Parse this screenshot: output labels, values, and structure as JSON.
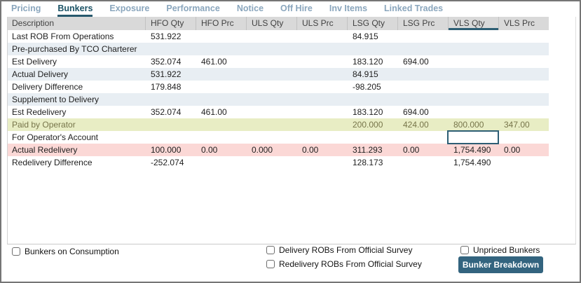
{
  "tabs": {
    "items": [
      {
        "label": "Pricing",
        "active": false
      },
      {
        "label": "Bunkers",
        "active": true
      },
      {
        "label": "Exposure",
        "active": false
      },
      {
        "label": "Performance",
        "active": false
      },
      {
        "label": "Notice",
        "active": false
      },
      {
        "label": "Off Hire",
        "active": false
      },
      {
        "label": "Inv Items",
        "active": false
      },
      {
        "label": "Linked Trades",
        "active": false
      }
    ]
  },
  "table": {
    "columns": [
      "Description",
      "HFO Qty",
      "HFO Prc",
      "ULS Qty",
      "ULS Prc",
      "LSG Qty",
      "LSG Prc",
      "VLS Qty",
      "VLS Prc"
    ],
    "highlighted_column": "VLS Qty",
    "focused_cell": {
      "row": "For Operator's Account",
      "column": "VLS Qty"
    },
    "rows": [
      {
        "description": "Last ROB From Operations",
        "style": "normal",
        "values": [
          "531.922",
          "",
          "",
          "",
          "84.915",
          "",
          "",
          ""
        ]
      },
      {
        "description": "Pre-purchased By TCO Charterer",
        "style": "stripe",
        "values": [
          "",
          "",
          "",
          "",
          "",
          "",
          "",
          ""
        ]
      },
      {
        "description": "Est Delivery",
        "style": "normal",
        "values": [
          "352.074",
          "461.00",
          "",
          "",
          "183.120",
          "694.00",
          "",
          ""
        ]
      },
      {
        "description": "Actual Delivery",
        "style": "stripe",
        "values": [
          "531.922",
          "",
          "",
          "",
          "84.915",
          "",
          "",
          ""
        ]
      },
      {
        "description": "Delivery Difference",
        "style": "normal",
        "values": [
          "179.848",
          "",
          "",
          "",
          "-98.205",
          "",
          "",
          ""
        ]
      },
      {
        "description": "Supplement to Delivery",
        "style": "stripe",
        "values": [
          "",
          "",
          "",
          "",
          "",
          "",
          "",
          ""
        ]
      },
      {
        "description": "Est Redelivery",
        "style": "normal",
        "values": [
          "352.074",
          "461.00",
          "",
          "",
          "183.120",
          "694.00",
          "",
          ""
        ]
      },
      {
        "description": "Paid by Operator",
        "style": "paid",
        "values": [
          "",
          "",
          "",
          "",
          "200.000",
          "424.00",
          "800.000",
          "347.00"
        ]
      },
      {
        "description": "For Operator's Account",
        "style": "normal",
        "values": [
          "",
          "",
          "",
          "",
          "",
          "",
          "",
          ""
        ]
      },
      {
        "description": "Actual Redelivery",
        "style": "redelivery",
        "values": [
          "100.000",
          "0.00",
          "0.000",
          "0.00",
          "311.293",
          "0.00",
          "1,754.490",
          "0.00"
        ]
      },
      {
        "description": "Redelivery Difference",
        "style": "normal",
        "values": [
          "-252.074",
          "",
          "",
          "",
          "128.173",
          "",
          "1,754.490",
          ""
        ]
      }
    ]
  },
  "footer": {
    "checkboxes": [
      {
        "label": "Bunkers on Consumption",
        "checked": false
      },
      {
        "label": "Delivery ROBs From Official Survey",
        "checked": false
      },
      {
        "label": "Redelivery ROBs From Official Survey",
        "checked": false
      },
      {
        "label": "Unpriced Bunkers",
        "checked": false
      }
    ],
    "button_label": "Bunker Breakdown"
  },
  "colors": {
    "active_tab": "#1c5366",
    "inactive_tab": "#8aa6bd",
    "header_bg": "#d9d9d9",
    "row_stripe": "#e8eef3",
    "paid_row_bg": "#e8edc4",
    "paid_row_text": "#77754a",
    "redelivery_row_bg": "#fbd8d6",
    "focus_border": "#2d5e74",
    "button_bg": "#33647f"
  }
}
